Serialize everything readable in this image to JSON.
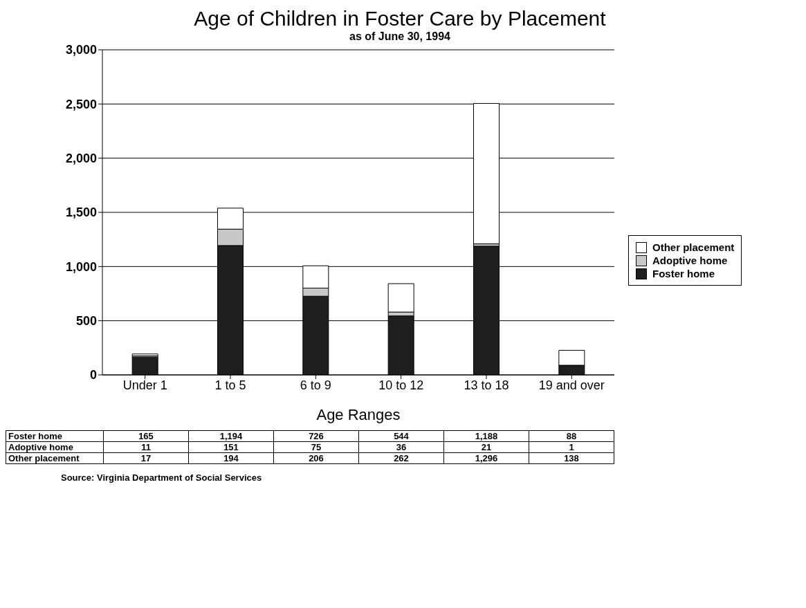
{
  "chart_data": {
    "type": "bar",
    "title": "Age of Children in Foster Care by Placement",
    "subtitle": "as of June 30, 1994",
    "xlabel": "Age Ranges",
    "categories": [
      "Under 1",
      "1 to 5",
      "6 to 9",
      "10 to 12",
      "13 to 18",
      "19 and over"
    ],
    "series": [
      {
        "name": "Foster home",
        "color": "#1e1e1e",
        "values": [
          165,
          1194,
          726,
          544,
          1188,
          88
        ],
        "value_labels": [
          "165",
          "1,194",
          "726",
          "544",
          "1,188",
          "88"
        ]
      },
      {
        "name": "Adoptive home",
        "color": "#c8c8c8",
        "values": [
          11,
          151,
          75,
          36,
          21,
          1
        ],
        "value_labels": [
          "11",
          "151",
          "75",
          "36",
          "21",
          "1"
        ]
      },
      {
        "name": "Other placement",
        "color": "#ffffff",
        "values": [
          17,
          194,
          206,
          262,
          1296,
          138
        ],
        "value_labels": [
          "17",
          "194",
          "206",
          "262",
          "1,296",
          "138"
        ]
      }
    ],
    "stacked": true,
    "ylim": [
      0,
      3000
    ],
    "yticks": [
      0,
      {
        "value": 500,
        "label": "500"
      },
      {
        "value": 1000,
        "label": "1,000"
      },
      {
        "value": 1500,
        "label": "1,500"
      },
      {
        "value": 2000,
        "label": "2,000"
      },
      {
        "value": 2500,
        "label": "2,500"
      },
      {
        "value": 3000,
        "label": "3,000"
      }
    ],
    "grid": "y",
    "legend": "right",
    "annotations": [
      "Source:  Virginia Department of Social Services"
    ]
  }
}
